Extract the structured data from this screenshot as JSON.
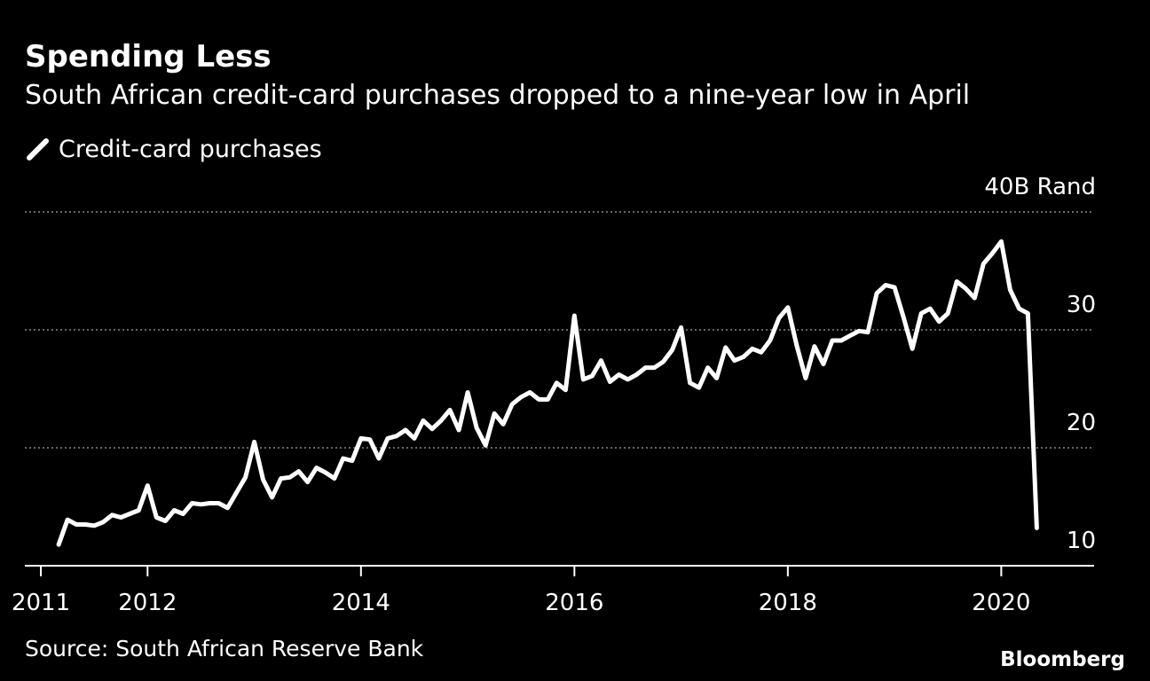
{
  "chart_data": {
    "type": "line",
    "title": "Spending Less",
    "subtitle": "South African credit-card purchases dropped to a nine-year low in April",
    "source": "Source: South African Reserve Bank",
    "brand": "Bloomberg",
    "x": [
      2011.167,
      2011.25,
      2011.333,
      2011.417,
      2011.5,
      2011.583,
      2011.667,
      2011.75,
      2011.833,
      2011.917,
      2012.0,
      2012.083,
      2012.167,
      2012.25,
      2012.333,
      2012.417,
      2012.5,
      2012.583,
      2012.667,
      2012.75,
      2012.833,
      2012.917,
      2013.0,
      2013.083,
      2013.167,
      2013.25,
      2013.333,
      2013.417,
      2013.5,
      2013.583,
      2013.667,
      2013.75,
      2013.833,
      2013.917,
      2014.0,
      2014.083,
      2014.167,
      2014.25,
      2014.333,
      2014.417,
      2014.5,
      2014.583,
      2014.667,
      2014.75,
      2014.833,
      2014.917,
      2015.0,
      2015.083,
      2015.167,
      2015.25,
      2015.333,
      2015.417,
      2015.5,
      2015.583,
      2015.667,
      2015.75,
      2015.833,
      2015.917,
      2016.0,
      2016.083,
      2016.167,
      2016.25,
      2016.333,
      2016.417,
      2016.5,
      2016.583,
      2016.667,
      2016.75,
      2016.833,
      2016.917,
      2017.0,
      2017.083,
      2017.167,
      2017.25,
      2017.333,
      2017.417,
      2017.5,
      2017.583,
      2017.667,
      2017.75,
      2017.833,
      2017.917,
      2018.0,
      2018.083,
      2018.167,
      2018.25,
      2018.333,
      2018.417,
      2018.5,
      2018.583,
      2018.667,
      2018.75,
      2018.833,
      2018.917,
      2019.0,
      2019.083,
      2019.167,
      2019.25,
      2019.333,
      2019.417,
      2019.5,
      2019.583,
      2019.667,
      2019.75,
      2019.833,
      2019.917,
      2020.0,
      2020.083,
      2020.167,
      2020.25,
      2020.333
    ],
    "series": [
      {
        "name": "Credit-card purchases",
        "color": "#ffffff",
        "values": [
          11.8,
          13.9,
          13.5,
          13.5,
          13.4,
          13.7,
          14.3,
          14.1,
          14.4,
          14.7,
          16.8,
          14.1,
          13.8,
          14.7,
          14.4,
          15.3,
          15.2,
          15.3,
          15.3,
          14.9,
          16.2,
          17.5,
          20.5,
          17.3,
          15.8,
          17.4,
          17.5,
          18.0,
          17.1,
          18.3,
          17.9,
          17.4,
          19.1,
          18.9,
          20.8,
          20.7,
          19.1,
          20.8,
          21.0,
          21.5,
          20.8,
          22.3,
          21.6,
          22.3,
          23.2,
          21.5,
          24.7,
          21.7,
          20.2,
          22.9,
          22.0,
          23.7,
          24.3,
          24.7,
          24.1,
          24.1,
          25.5,
          24.9,
          31.2,
          25.8,
          26.1,
          27.4,
          25.6,
          26.2,
          25.8,
          26.2,
          26.8,
          26.8,
          27.3,
          28.3,
          30.2,
          25.5,
          25.1,
          26.8,
          25.9,
          28.5,
          27.4,
          27.7,
          28.4,
          28.1,
          29.1,
          31.0,
          31.9,
          28.7,
          25.9,
          28.6,
          27.1,
          29.1,
          29.1,
          29.5,
          29.9,
          29.8,
          33.1,
          33.8,
          33.6,
          31.1,
          28.4,
          31.4,
          31.8,
          30.7,
          31.4,
          34.1,
          33.5,
          32.7,
          35.6,
          36.5,
          37.5,
          33.4,
          31.8,
          31.4,
          13.2
        ]
      }
    ],
    "xlim": [
      2010.85,
      2020.87
    ],
    "xticks": [
      2011,
      2012,
      2014,
      2016,
      2018,
      2020
    ],
    "ylim": [
      10,
      40
    ],
    "yticks": [
      10,
      20,
      30,
      {
        "value": 40,
        "label": "40B Rand"
      }
    ],
    "grid": true
  }
}
